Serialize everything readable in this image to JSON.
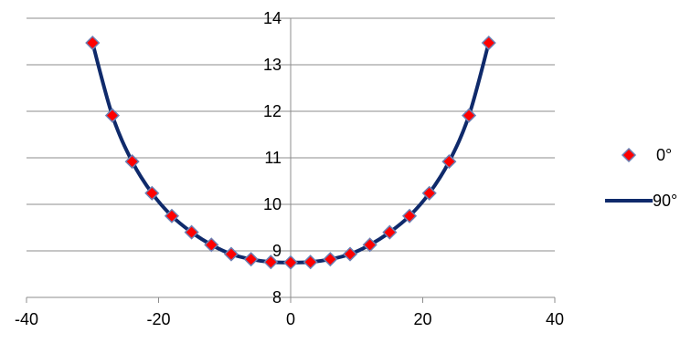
{
  "chart_data": {
    "type": "scatter",
    "title": "",
    "xlabel": "",
    "ylabel": "",
    "xlim": [
      -40,
      40
    ],
    "ylim": [
      8,
      14
    ],
    "x_ticks": [
      -40,
      -20,
      0,
      20,
      40
    ],
    "y_ticks": [
      8,
      9,
      10,
      11,
      12,
      13,
      14
    ],
    "x_tick_labels": [
      "-40",
      "-20",
      "0",
      "20",
      "40"
    ],
    "y_tick_labels": [
      "8",
      "9",
      "10",
      "11",
      "12",
      "13",
      "14"
    ],
    "grid": "horizontal",
    "legend_position": "right",
    "series": [
      {
        "name": "0°",
        "style": "markers",
        "marker": "diamond",
        "color": "#ff0000",
        "edge_color": "#6b7fb3",
        "x": [
          -30,
          -27,
          -24,
          -21,
          -18,
          -15,
          -12,
          -9,
          -6,
          -3,
          0,
          3,
          6,
          9,
          12,
          15,
          18,
          21,
          24,
          27,
          30
        ],
        "y": [
          13.47,
          11.91,
          10.92,
          10.24,
          9.75,
          9.4,
          9.13,
          8.93,
          8.82,
          8.76,
          8.75,
          8.76,
          8.82,
          8.93,
          9.13,
          9.4,
          9.75,
          10.24,
          10.92,
          11.91,
          13.47
        ]
      },
      {
        "name": "90°",
        "style": "line",
        "color": "#0f2a6b",
        "x": [
          -30,
          -27,
          -24,
          -21,
          -18,
          -15,
          -12,
          -9,
          -6,
          -3,
          0,
          3,
          6,
          9,
          12,
          15,
          18,
          21,
          24,
          27,
          30
        ],
        "y": [
          13.47,
          11.91,
          10.92,
          10.24,
          9.75,
          9.4,
          9.13,
          8.93,
          8.82,
          8.76,
          8.75,
          8.76,
          8.82,
          8.93,
          9.13,
          9.4,
          9.75,
          10.24,
          10.92,
          11.91,
          13.47
        ]
      }
    ]
  }
}
